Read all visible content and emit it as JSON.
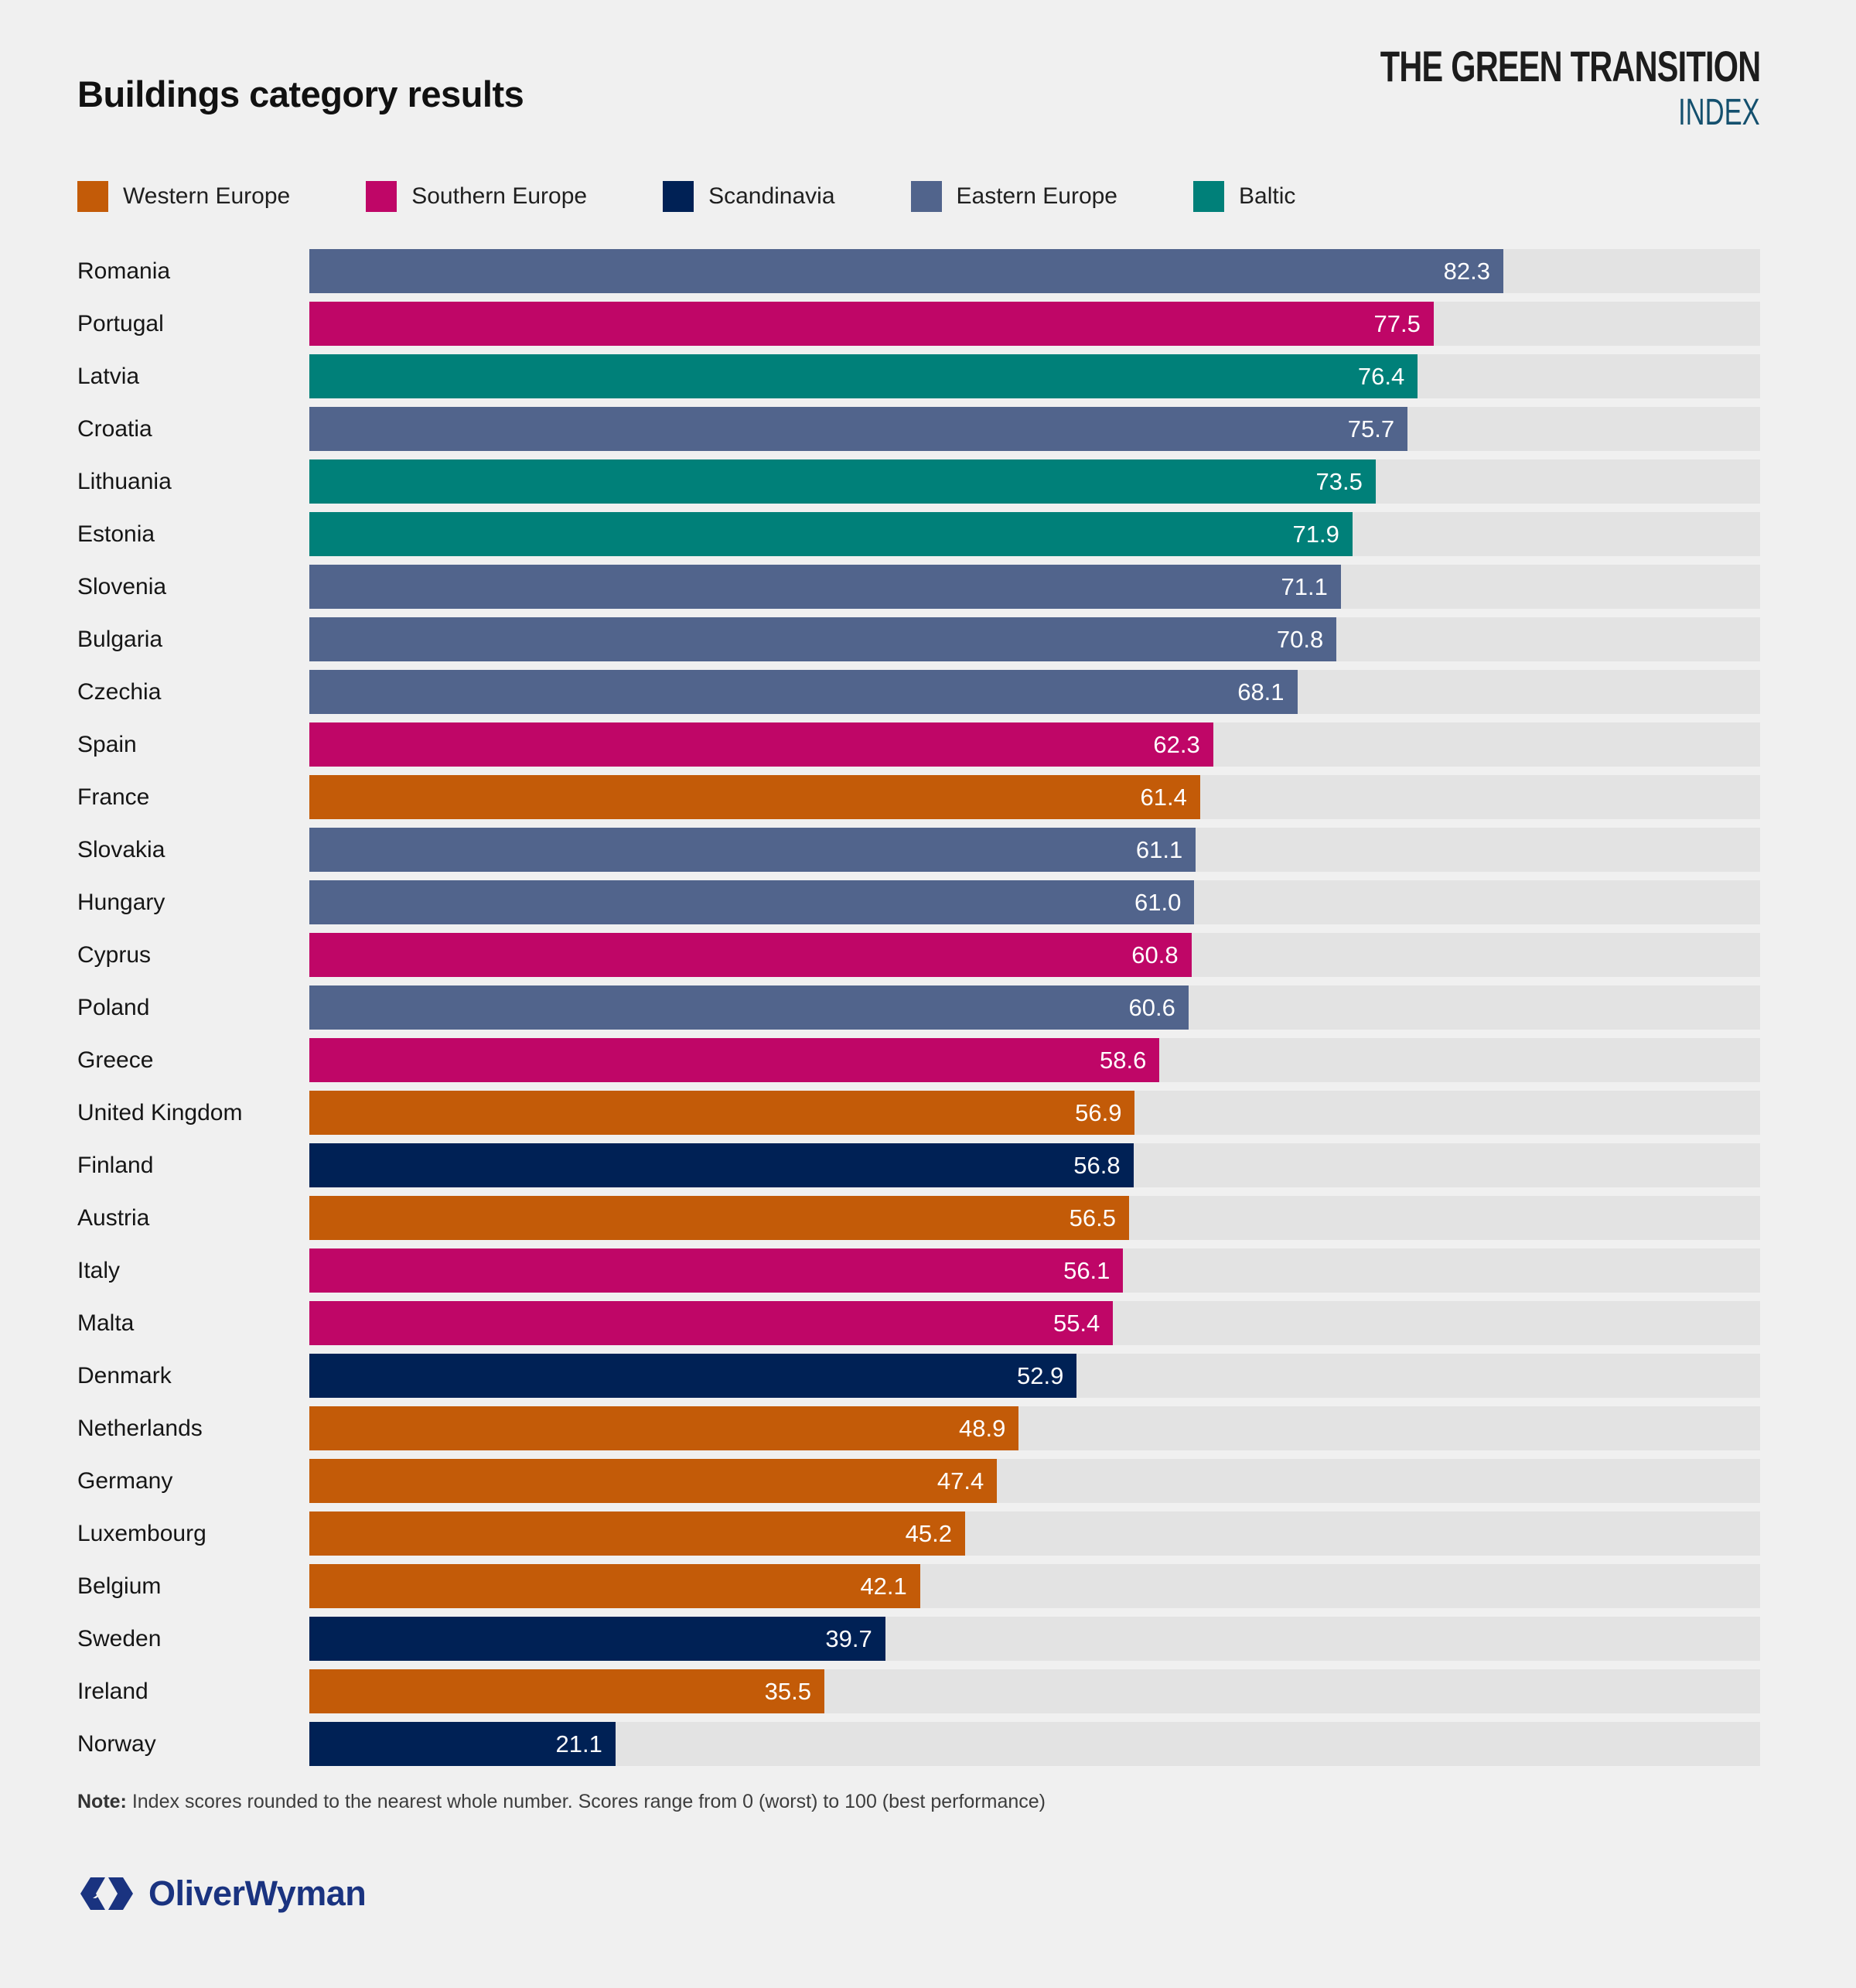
{
  "header": {
    "title": "Buildings category results",
    "brand_line1": "THE GREEN TRANSITION",
    "brand_line2": "INDEX"
  },
  "legend": [
    {
      "label": "Western Europe",
      "color": "#C35B08"
    },
    {
      "label": "Southern Europe",
      "color": "#BF0667"
    },
    {
      "label": "Scandinavia",
      "color": "#002155"
    },
    {
      "label": "Eastern Europe",
      "color": "#51648C"
    },
    {
      "label": "Baltic",
      "color": "#008079"
    }
  ],
  "note": {
    "label": "Note:",
    "text": " Index scores rounded to the nearest whole number. Scores range from 0 (worst) to 100 (best performance)"
  },
  "footer": {
    "logo_text": "OliverWyman",
    "logo_color": "#1A3380"
  },
  "colors": {
    "page_background": "#F0F0F0",
    "bar_track": "#E3E3E3",
    "value_text": "#FFFFFF",
    "index_blue": "#14506E"
  },
  "chart_data": {
    "type": "bar",
    "orientation": "horizontal",
    "title": "Buildings category results",
    "xlabel": "",
    "ylabel": "",
    "xlim": [
      0,
      100
    ],
    "grid": false,
    "legend_position": "top",
    "value_label_decimals": 1,
    "categories": [
      "Romania",
      "Portugal",
      "Latvia",
      "Croatia",
      "Lithuania",
      "Estonia",
      "Slovenia",
      "Bulgaria",
      "Czechia",
      "Spain",
      "France",
      "Slovakia",
      "Hungary",
      "Cyprus",
      "Poland",
      "Greece",
      "United Kingdom",
      "Finland",
      "Austria",
      "Italy",
      "Malta",
      "Denmark",
      "Netherlands",
      "Germany",
      "Luxembourg",
      "Belgium",
      "Sweden",
      "Ireland",
      "Norway"
    ],
    "values": [
      82.3,
      77.5,
      76.4,
      75.7,
      73.5,
      71.9,
      71.1,
      70.8,
      68.1,
      62.3,
      61.4,
      61.1,
      61.0,
      60.8,
      60.6,
      58.6,
      56.9,
      56.8,
      56.5,
      56.1,
      55.4,
      52.9,
      48.9,
      47.4,
      45.2,
      42.1,
      39.7,
      35.5,
      21.1
    ],
    "regions": [
      "Eastern Europe",
      "Southern Europe",
      "Baltic",
      "Eastern Europe",
      "Baltic",
      "Baltic",
      "Eastern Europe",
      "Eastern Europe",
      "Eastern Europe",
      "Southern Europe",
      "Western Europe",
      "Eastern Europe",
      "Eastern Europe",
      "Southern Europe",
      "Eastern Europe",
      "Southern Europe",
      "Western Europe",
      "Scandinavia",
      "Western Europe",
      "Southern Europe",
      "Southern Europe",
      "Scandinavia",
      "Western Europe",
      "Western Europe",
      "Western Europe",
      "Western Europe",
      "Scandinavia",
      "Western Europe",
      "Scandinavia"
    ]
  }
}
